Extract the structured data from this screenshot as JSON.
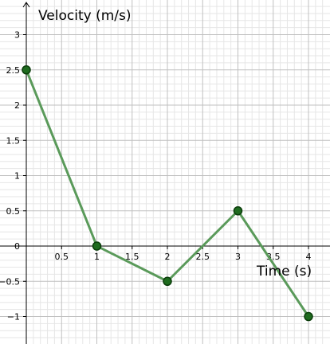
{
  "chart_data": {
    "type": "line",
    "title": "",
    "xlabel": "Time (s)",
    "ylabel": "Velocity (m/s)",
    "xlim": [
      0,
      4.2
    ],
    "ylim": [
      -1.4,
      3.4
    ],
    "x_ticks": [
      "0.5",
      "1",
      "1.5",
      "2",
      "2.5",
      "3",
      "3.5",
      "4"
    ],
    "y_ticks": [
      "3",
      "2.5",
      "2",
      "1.5",
      "1",
      "0.5",
      "0",
      "−0.5",
      "−1"
    ],
    "grid": true,
    "series": [
      {
        "x": [
          0,
          1,
          2,
          3,
          4
        ],
        "y": [
          2.5,
          0,
          -0.5,
          0.5,
          -1
        ]
      }
    ],
    "colors": {
      "line": "#5a9a5a",
      "marker_fill": "#1f6b1f",
      "marker_stroke": "#0b3d0b",
      "grid_major": "#c0c0c0",
      "grid_minor": "#e6e6e6",
      "axis": "#000000"
    }
  }
}
